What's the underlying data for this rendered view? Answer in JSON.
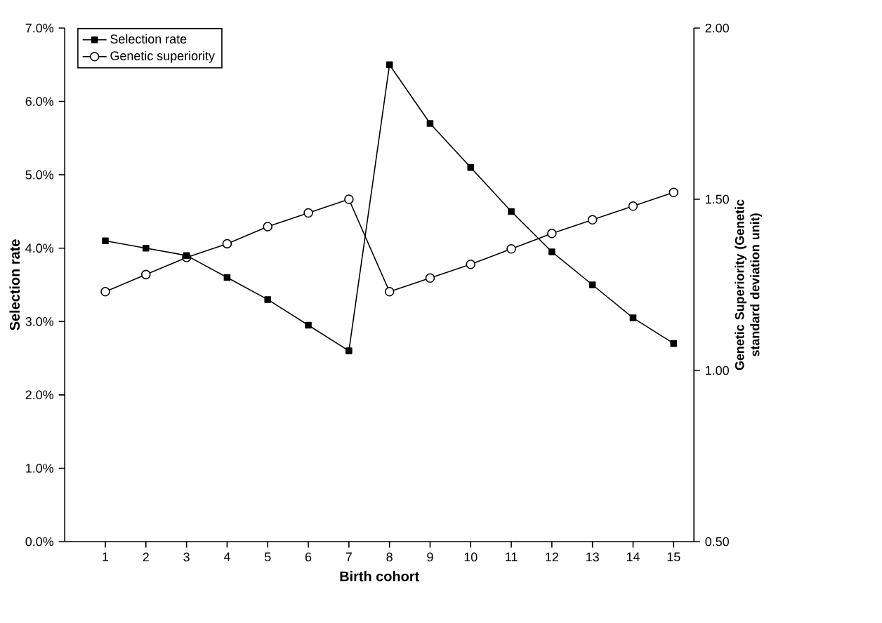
{
  "chart_data": {
    "type": "line",
    "categories": [
      "1",
      "2",
      "3",
      "4",
      "5",
      "6",
      "7",
      "8",
      "9",
      "10",
      "11",
      "12",
      "13",
      "14",
      "15"
    ],
    "xlabel": "Birth cohort",
    "ylabel": "Selection rate",
    "y2label": "Genetic Superiority (Genetic standard deviation unit)",
    "ylim": [
      0,
      7
    ],
    "yticks": [
      {
        "value": 0,
        "label": "0.0%"
      },
      {
        "value": 1,
        "label": "1.0%"
      },
      {
        "value": 2,
        "label": "2.0%"
      },
      {
        "value": 3,
        "label": "3.0%"
      },
      {
        "value": 4,
        "label": "4.0%"
      },
      {
        "value": 5,
        "label": "5.0%"
      },
      {
        "value": 6,
        "label": "6.0%"
      },
      {
        "value": 7,
        "label": "7.0%"
      }
    ],
    "y2lim": [
      0.5,
      2.0
    ],
    "y2ticks": [
      {
        "value": 0.5,
        "label": "0.50"
      },
      {
        "value": 1.0,
        "label": "1.00"
      },
      {
        "value": 1.5,
        "label": "1.50"
      },
      {
        "value": 2.0,
        "label": "2.00"
      }
    ],
    "legend": "top left",
    "series": [
      {
        "name": "Selection rate",
        "color": "#000000",
        "marker": "square",
        "values": [
          4.1,
          4.0,
          3.9,
          3.6,
          3.3,
          2.95,
          2.6,
          6.5,
          5.7,
          5.1,
          4.5,
          3.95,
          3.5,
          3.05,
          2.7
        ]
      },
      {
        "name": "Genetic superiority",
        "color": "#000000",
        "marker": "circle",
        "axis": "y2",
        "values": [
          1.23,
          1.28,
          1.33,
          1.37,
          1.42,
          1.46,
          1.5,
          1.23,
          1.27,
          1.31,
          1.355,
          1.4,
          1.44,
          1.48,
          1.52
        ]
      }
    ]
  }
}
